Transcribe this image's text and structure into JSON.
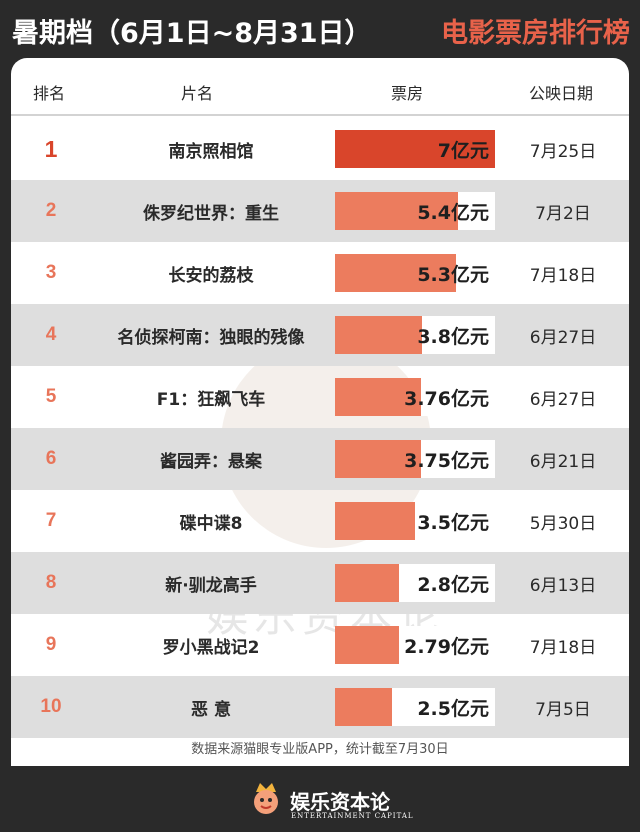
{
  "header": {
    "title_left": "暑期档（6月1日~8月31日）",
    "title_right": "电影票房排行榜"
  },
  "columns": {
    "rank": "排名",
    "title": "片名",
    "box": "票房",
    "release": "公映日期"
  },
  "colors": {
    "accent": "#e8624a",
    "bar_top": "#d9452b",
    "bar": "#ec7c5e",
    "background": "#2a2a2a"
  },
  "chart_data": {
    "type": "table",
    "title": "暑期档（6月1日~8月31日）电影票房排行榜",
    "unit": "亿元",
    "scale_max": 7,
    "rows": [
      {
        "rank": "1",
        "title": "南京照相馆",
        "value": 7,
        "label": "7亿元",
        "release": "7月25日"
      },
      {
        "rank": "2",
        "title": "侏罗纪世界：重生",
        "value": 5.4,
        "label": "5.4亿元",
        "release": "7月2日"
      },
      {
        "rank": "3",
        "title": "长安的荔枝",
        "value": 5.3,
        "label": "5.3亿元",
        "release": "7月18日"
      },
      {
        "rank": "4",
        "title": "名侦探柯南：独眼的残像",
        "value": 3.8,
        "label": "3.8亿元",
        "release": "6月27日"
      },
      {
        "rank": "5",
        "title": "F1：狂飙飞车",
        "value": 3.76,
        "label": "3.76亿元",
        "release": "6月27日"
      },
      {
        "rank": "6",
        "title": "酱园弄：悬案",
        "value": 3.75,
        "label": "3.75亿元",
        "release": "6月21日"
      },
      {
        "rank": "7",
        "title": "碟中谍8",
        "value": 3.5,
        "label": "3.5亿元",
        "release": "5月30日"
      },
      {
        "rank": "8",
        "title": "新·驯龙高手",
        "value": 2.8,
        "label": "2.8亿元",
        "release": "6月13日"
      },
      {
        "rank": "9",
        "title": "罗小黑战记2",
        "value": 2.79,
        "label": "2.79亿元",
        "release": "7月18日"
      },
      {
        "rank": "10",
        "title": "恶 意",
        "value": 2.5,
        "label": "2.5亿元",
        "release": "7月5日"
      }
    ]
  },
  "footnote": "数据来源猫眼专业版APP，统计截至7月30日",
  "watermark": {
    "text_en": "ENTERTAINMENT",
    "text_cn": "娱乐资本论"
  },
  "brand": {
    "name": "娱乐资本论",
    "name_en": "ENTERTAINMENT CAPITAL"
  }
}
